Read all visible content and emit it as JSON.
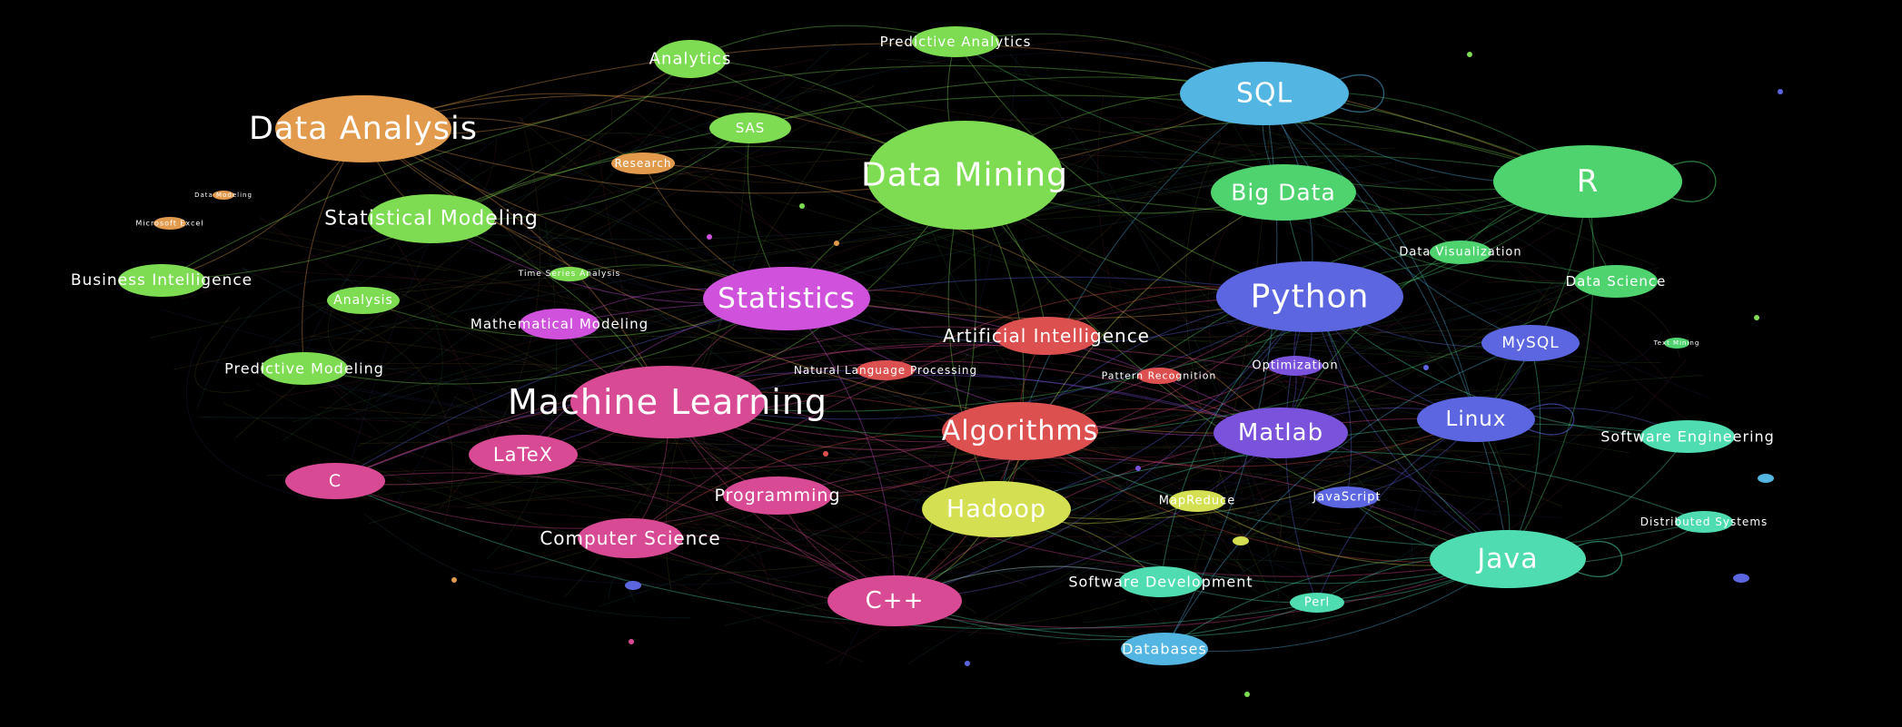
{
  "colors": {
    "background": "#000000",
    "label": "#ffffff",
    "green": "#7ddc52",
    "teal": "#4fd36f",
    "orange": "#e29a4d",
    "blue": "#52b5e2",
    "purple": "#5b66e0",
    "magenta": "#d052dc",
    "violet": "#7a52dc",
    "pink": "#d94a94",
    "red": "#dd5050",
    "yellow": "#d4e052",
    "aqua": "#4fdcb0"
  },
  "nodes": [
    {
      "id": "data-analysis",
      "label": "Data Analysis",
      "color": "#e29a4d"
    },
    {
      "id": "analytics",
      "label": "Analytics",
      "color": "#7ddc52"
    },
    {
      "id": "predictive-analytics",
      "label": "Predictive Analytics",
      "color": "#7ddc52"
    },
    {
      "id": "sas",
      "label": "SAS",
      "color": "#7ddc52"
    },
    {
      "id": "research",
      "label": "Research",
      "color": "#e29a4d"
    },
    {
      "id": "data-mining",
      "label": "Data Mining",
      "color": "#7ddc52"
    },
    {
      "id": "sql",
      "label": "SQL",
      "color": "#52b5e2"
    },
    {
      "id": "big-data",
      "label": "Big Data",
      "color": "#4fd36f"
    },
    {
      "id": "r",
      "label": "R",
      "color": "#4fd36f"
    },
    {
      "id": "statistical-modeling",
      "label": "Statistical Modeling",
      "color": "#7ddc52"
    },
    {
      "id": "business-intelligence",
      "label": "Business Intelligence",
      "color": "#7ddc52"
    },
    {
      "id": "analysis",
      "label": "Analysis",
      "color": "#7ddc52"
    },
    {
      "id": "time-series-analysis",
      "label": "Time Series Analysis",
      "color": "#7ddc52"
    },
    {
      "id": "statistics",
      "label": "Statistics",
      "color": "#d052dc"
    },
    {
      "id": "python",
      "label": "Python",
      "color": "#5b66e0"
    },
    {
      "id": "data-visualization",
      "label": "Data Visualization",
      "color": "#4fd36f"
    },
    {
      "id": "data-science",
      "label": "Data Science",
      "color": "#4fd36f"
    },
    {
      "id": "mathematical-modeling",
      "label": "Mathematical Modeling",
      "color": "#d052dc"
    },
    {
      "id": "artificial-intelligence",
      "label": "Artificial Intelligence",
      "color": "#dd5050"
    },
    {
      "id": "mysql",
      "label": "MySQL",
      "color": "#5b66e0"
    },
    {
      "id": "predictive-modeling",
      "label": "Predictive Modeling",
      "color": "#7ddc52"
    },
    {
      "id": "natural-language-processing",
      "label": "Natural Language Processing",
      "color": "#dd5050"
    },
    {
      "id": "optimization",
      "label": "Optimization",
      "color": "#7a52dc"
    },
    {
      "id": "pattern-recognition",
      "label": "Pattern Recognition",
      "color": "#dd5050"
    },
    {
      "id": "machine-learning",
      "label": "Machine Learning",
      "color": "#d94a94"
    },
    {
      "id": "algorithms",
      "label": "Algorithms",
      "color": "#dd5050"
    },
    {
      "id": "matlab",
      "label": "Matlab",
      "color": "#7a52dc"
    },
    {
      "id": "linux",
      "label": "Linux",
      "color": "#5b66e0"
    },
    {
      "id": "software-engineering",
      "label": "Software Engineering",
      "color": "#4fdcb0"
    },
    {
      "id": "latex",
      "label": "LaTeX",
      "color": "#d94a94"
    },
    {
      "id": "c",
      "label": "C",
      "color": "#d94a94"
    },
    {
      "id": "programming",
      "label": "Programming",
      "color": "#d94a94"
    },
    {
      "id": "hadoop",
      "label": "Hadoop",
      "color": "#d4e052"
    },
    {
      "id": "mapreduce",
      "label": "MapReduce",
      "color": "#d4e052"
    },
    {
      "id": "javascript",
      "label": "JavaScript",
      "color": "#5b66e0"
    },
    {
      "id": "distributed-systems",
      "label": "Distributed Systems",
      "color": "#4fdcb0"
    },
    {
      "id": "computer-science",
      "label": "Computer Science",
      "color": "#d94a94"
    },
    {
      "id": "java",
      "label": "Java",
      "color": "#4fdcb0"
    },
    {
      "id": "software-development",
      "label": "Software Development",
      "color": "#4fdcb0"
    },
    {
      "id": "cpp",
      "label": "C++",
      "color": "#d94a94"
    },
    {
      "id": "perl",
      "label": "Perl",
      "color": "#4fdcb0"
    },
    {
      "id": "databases",
      "label": "Databases",
      "color": "#52b5e2"
    },
    {
      "id": "microsoft-excel",
      "label": "Microsoft Excel",
      "color": "#e29a4d"
    },
    {
      "id": "data-modeling",
      "label": "Data Modeling",
      "color": "#e29a4d"
    },
    {
      "id": "text-mining",
      "label": "Text Mining",
      "color": "#4fd36f"
    }
  ]
}
